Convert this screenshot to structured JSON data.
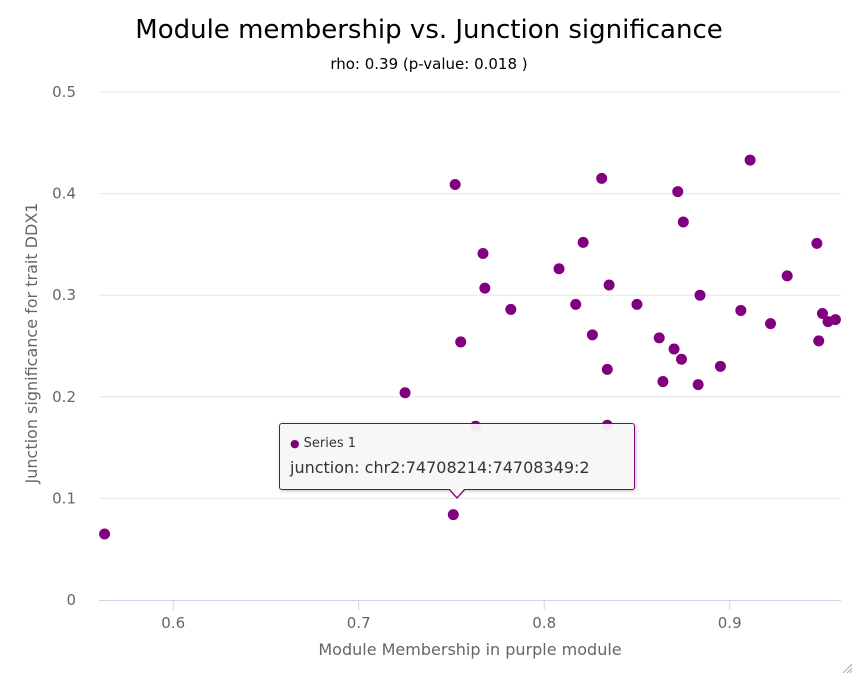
{
  "chart_data": {
    "type": "scatter",
    "title": "Module membership vs. Junction significance",
    "subtitle": "rho: 0.39 (p-value: 0.018 )",
    "xlabel": "Module Membership in purple module",
    "ylabel": "Junction significance for trait DDX1",
    "xlim": [
      0.56,
      0.96
    ],
    "ylim": [
      0,
      0.5
    ],
    "x_ticks": [
      "0.6",
      "0.7",
      "0.8",
      "0.9"
    ],
    "y_ticks": [
      "0",
      "0.1",
      "0.2",
      "0.3",
      "0.4",
      "0.5"
    ],
    "grid": true,
    "legend": "none",
    "series": [
      {
        "name": "Series 1",
        "color": "#800080",
        "points": [
          [
            0.563,
            0.065
          ],
          [
            0.725,
            0.204
          ],
          [
            0.751,
            0.084
          ],
          [
            0.752,
            0.409
          ],
          [
            0.755,
            0.254
          ],
          [
            0.763,
            0.171
          ],
          [
            0.767,
            0.341
          ],
          [
            0.768,
            0.307
          ],
          [
            0.782,
            0.286
          ],
          [
            0.808,
            0.326
          ],
          [
            0.817,
            0.291
          ],
          [
            0.821,
            0.352
          ],
          [
            0.826,
            0.261
          ],
          [
            0.831,
            0.415
          ],
          [
            0.834,
            0.172
          ],
          [
            0.834,
            0.227
          ],
          [
            0.835,
            0.31
          ],
          [
            0.85,
            0.291
          ],
          [
            0.862,
            0.258
          ],
          [
            0.864,
            0.215
          ],
          [
            0.87,
            0.247
          ],
          [
            0.872,
            0.402
          ],
          [
            0.874,
            0.237
          ],
          [
            0.875,
            0.372
          ],
          [
            0.883,
            0.212
          ],
          [
            0.884,
            0.3
          ],
          [
            0.895,
            0.23
          ],
          [
            0.906,
            0.285
          ],
          [
            0.911,
            0.433
          ],
          [
            0.922,
            0.272
          ],
          [
            0.931,
            0.319
          ],
          [
            0.947,
            0.351
          ],
          [
            0.948,
            0.255
          ],
          [
            0.95,
            0.282
          ],
          [
            0.953,
            0.274
          ],
          [
            0.957,
            0.276
          ]
        ]
      }
    ]
  },
  "tooltip": {
    "series_name": "Series 1",
    "text": "junction: chr2:74708214:74708349:2"
  }
}
